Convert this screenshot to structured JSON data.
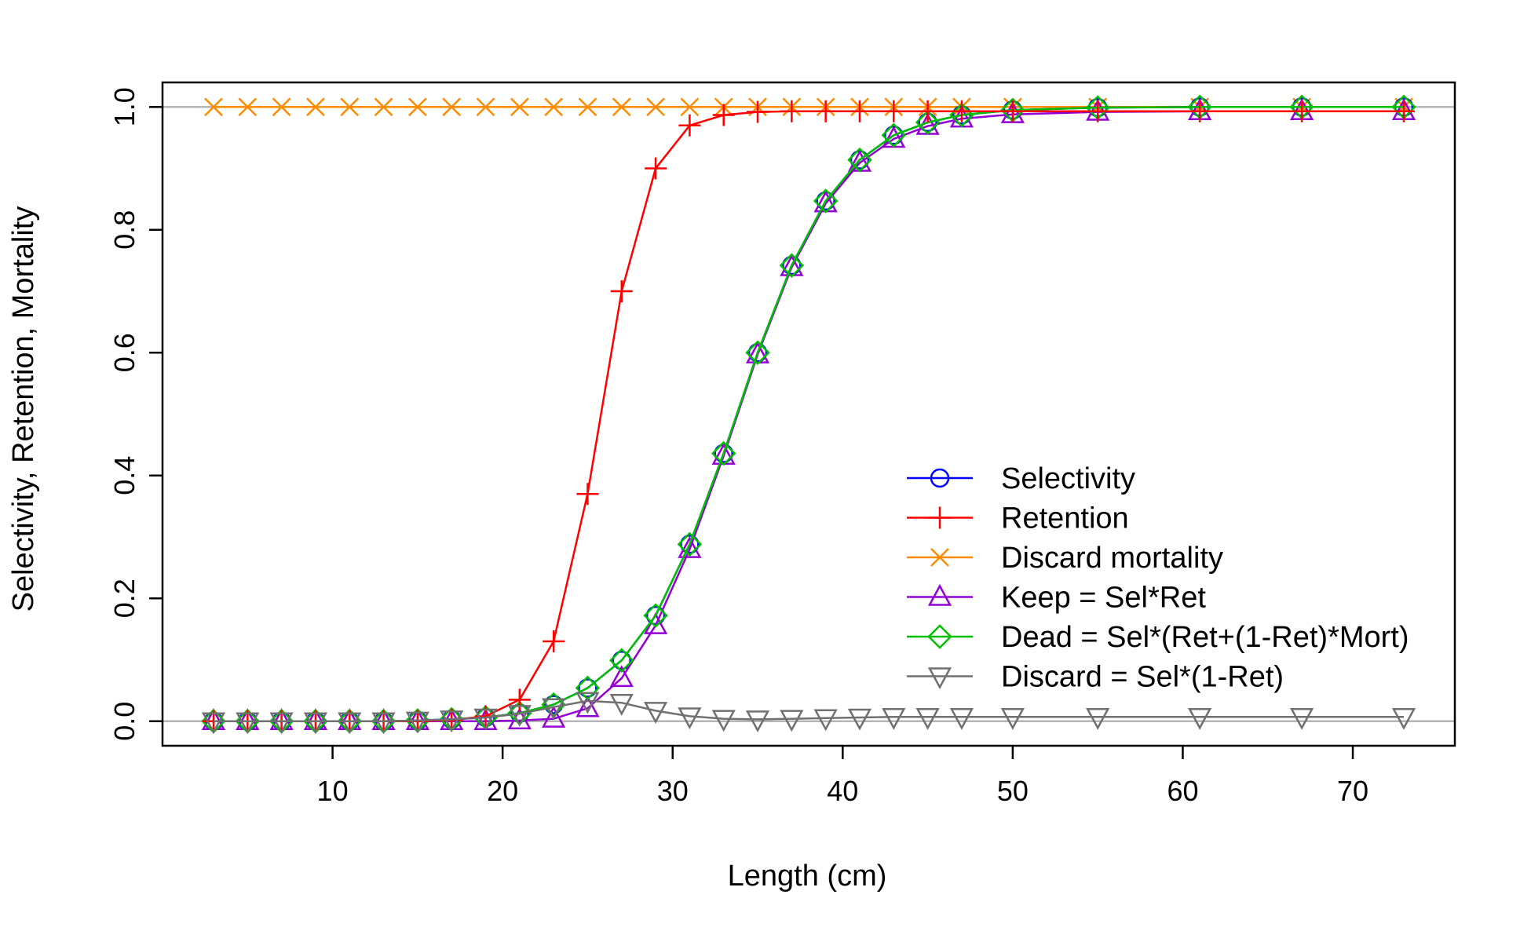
{
  "chart_data": {
    "type": "line",
    "xlabel": "Length (cm)",
    "ylabel": "Selectivity, Retention, Mortality",
    "xlim": [
      0,
      76
    ],
    "ylim": [
      -0.04,
      1.04
    ],
    "xticks": [
      10,
      20,
      30,
      40,
      50,
      60,
      70
    ],
    "xtick_labels": [
      "10",
      "20",
      "30",
      "40",
      "50",
      "60",
      "70"
    ],
    "yticks": [
      0.0,
      0.2,
      0.4,
      0.6,
      0.8,
      1.0
    ],
    "ytick_labels": [
      "0.0",
      "0.2",
      "0.4",
      "0.6",
      "0.8",
      "1.0"
    ],
    "reference_lines": [
      0,
      1
    ],
    "grid": false,
    "legend_position": "bottom-right",
    "x": [
      3,
      5,
      7,
      9,
      11,
      13,
      15,
      17,
      19,
      21,
      23,
      25,
      27,
      29,
      31,
      33,
      35,
      37,
      39,
      41,
      43,
      45,
      47,
      50,
      55,
      61,
      67,
      73
    ],
    "series": [
      {
        "name": "Selectivity",
        "color": "#0000ff",
        "marker": "circle",
        "values": [
          0,
          0,
          0,
          0,
          0,
          0,
          0.001,
          0.003,
          0.006,
          0.013,
          0.027,
          0.054,
          0.099,
          0.172,
          0.288,
          0.436,
          0.6,
          0.742,
          0.847,
          0.914,
          0.954,
          0.975,
          0.987,
          0.995,
          0.999,
          1.0,
          1.0,
          1.0
        ]
      },
      {
        "name": "Retention",
        "color": "#ff0000",
        "marker": "plus",
        "values": [
          0,
          0,
          0,
          0,
          0,
          0,
          0,
          0.002,
          0.008,
          0.035,
          0.13,
          0.37,
          0.7,
          0.9,
          0.97,
          0.987,
          0.992,
          0.993,
          0.993,
          0.993,
          0.993,
          0.993,
          0.993,
          0.993,
          0.993,
          0.993,
          0.993,
          0.993
        ]
      },
      {
        "name": "Discard mortality",
        "color": "#ff8c00",
        "marker": "x",
        "values": [
          1,
          1,
          1,
          1,
          1,
          1,
          1,
          1,
          1,
          1,
          1,
          1,
          1,
          1,
          1,
          1,
          1,
          1,
          1,
          1,
          1,
          1,
          1,
          1,
          1,
          1,
          1,
          1
        ]
      },
      {
        "name": "Keep = Sel*Ret",
        "color": "#9400d3",
        "marker": "triangle-up",
        "values": [
          0,
          0,
          0,
          0,
          0,
          0,
          0,
          0,
          0,
          0.001,
          0.004,
          0.021,
          0.07,
          0.156,
          0.28,
          0.432,
          0.597,
          0.739,
          0.843,
          0.909,
          0.948,
          0.969,
          0.981,
          0.988,
          0.992,
          0.993,
          0.993,
          0.993
        ]
      },
      {
        "name": "Dead = Sel*(Ret+(1-Ret)*Mort)",
        "color": "#00c000",
        "marker": "diamond",
        "values": [
          0,
          0,
          0,
          0,
          0,
          0,
          0.001,
          0.003,
          0.006,
          0.013,
          0.027,
          0.054,
          0.099,
          0.172,
          0.288,
          0.436,
          0.6,
          0.742,
          0.847,
          0.914,
          0.954,
          0.975,
          0.987,
          0.995,
          0.999,
          1.0,
          1.0,
          1.0
        ]
      },
      {
        "name": "Discard = Sel*(1-Ret)",
        "color": "#707070",
        "marker": "triangle-down",
        "values": [
          0,
          0,
          0,
          0,
          0,
          0,
          0.001,
          0.003,
          0.006,
          0.012,
          0.023,
          0.033,
          0.03,
          0.017,
          0.008,
          0.004,
          0.003,
          0.004,
          0.005,
          0.006,
          0.007,
          0.007,
          0.007,
          0.007,
          0.007,
          0.007,
          0.007,
          0.007
        ]
      }
    ]
  }
}
